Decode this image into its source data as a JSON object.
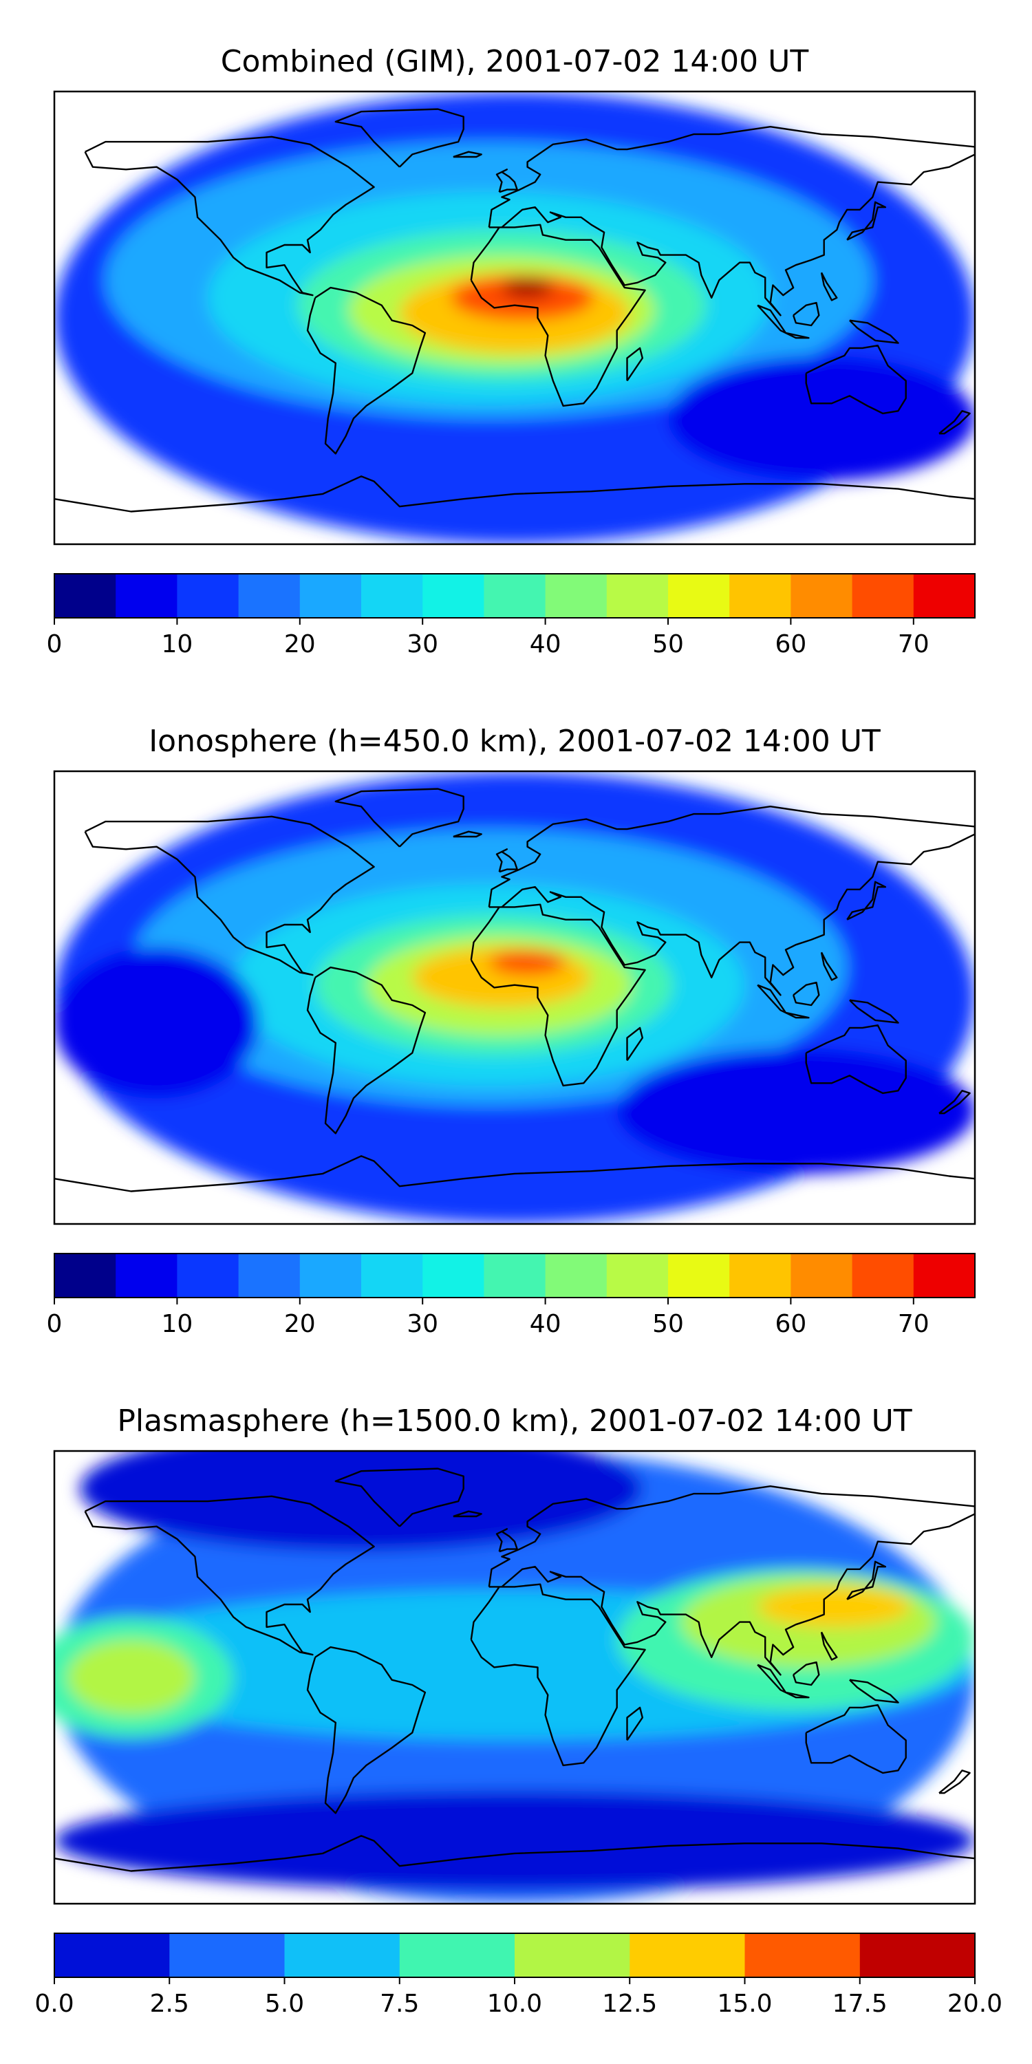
{
  "chart_data": [
    {
      "type": "heatmap",
      "title": "Combined (GIM), 2001-07-02 14:00 UT",
      "colorbar": {
        "levels": [
          0,
          5,
          10,
          15,
          20,
          25,
          30,
          35,
          40,
          45,
          50,
          55,
          60,
          65,
          70,
          75
        ],
        "colors": [
          "#00008b",
          "#0000ee",
          "#0a37ff",
          "#1a73ff",
          "#1aa8ff",
          "#14d6f5",
          "#12f2e6",
          "#44f5b0",
          "#82fa78",
          "#b8fa46",
          "#e8fa14",
          "#ffc400",
          "#ff8c00",
          "#ff4d00",
          "#ee0000",
          "#a00000"
        ],
        "tick_values": [
          0,
          10,
          20,
          30,
          40,
          50,
          60,
          70
        ],
        "tick_labels": [
          "0",
          "10",
          "20",
          "30",
          "40",
          "50",
          "60",
          "70"
        ]
      },
      "features": [
        {
          "name": "background",
          "lon": 0,
          "lat": 0,
          "rx": 180,
          "ry": 90,
          "level": 2
        },
        {
          "name": "mid-band",
          "lon": -10,
          "lat": 15,
          "rx": 150,
          "ry": 55,
          "level": 4
        },
        {
          "name": "inner-band",
          "lon": -10,
          "lat": 8,
          "rx": 110,
          "ry": 42,
          "level": 5
        },
        {
          "name": "crest",
          "lon": -5,
          "lat": 5,
          "rx": 80,
          "ry": 30,
          "level": 7
        },
        {
          "name": "crest-core",
          "lon": -5,
          "lat": 3,
          "rx": 60,
          "ry": 22,
          "level": 9
        },
        {
          "name": "peak-zone",
          "lon": 0,
          "lat": 2,
          "rx": 45,
          "ry": 16,
          "level": 11
        },
        {
          "name": "peak-inner",
          "lon": 3,
          "lat": 8,
          "rx": 28,
          "ry": 9,
          "level": 13
        },
        {
          "name": "peak-max",
          "lon": 5,
          "lat": 12,
          "rx": 10,
          "ry": 4,
          "level": 15
        },
        {
          "name": "south-low",
          "lon": 120,
          "lat": -40,
          "rx": 60,
          "ry": 25,
          "level": 1
        }
      ]
    },
    {
      "type": "heatmap",
      "title": "Ionosphere  (h=450.0 km), 2001-07-02 14:00 UT",
      "colorbar": {
        "levels": [
          0,
          5,
          10,
          15,
          20,
          25,
          30,
          35,
          40,
          45,
          50,
          55,
          60,
          65,
          70,
          75
        ],
        "colors": [
          "#00008b",
          "#0000ee",
          "#0a37ff",
          "#1a73ff",
          "#1aa8ff",
          "#14d6f5",
          "#12f2e6",
          "#44f5b0",
          "#82fa78",
          "#b8fa46",
          "#e8fa14",
          "#ffc400",
          "#ff8c00",
          "#ff4d00",
          "#ee0000",
          "#a00000"
        ],
        "tick_values": [
          0,
          10,
          20,
          30,
          40,
          50,
          60,
          70
        ],
        "tick_labels": [
          "0",
          "10",
          "20",
          "30",
          "40",
          "50",
          "60",
          "70"
        ]
      },
      "features": [
        {
          "name": "background",
          "lon": 0,
          "lat": 0,
          "rx": 180,
          "ry": 90,
          "level": 2
        },
        {
          "name": "mid-band",
          "lon": -10,
          "lat": 12,
          "rx": 140,
          "ry": 55,
          "level": 4
        },
        {
          "name": "inner-band",
          "lon": -10,
          "lat": 5,
          "rx": 100,
          "ry": 40,
          "level": 5
        },
        {
          "name": "crest",
          "lon": -8,
          "lat": 5,
          "rx": 70,
          "ry": 28,
          "level": 7
        },
        {
          "name": "crest-core",
          "lon": -6,
          "lat": 5,
          "rx": 52,
          "ry": 20,
          "level": 9
        },
        {
          "name": "peak-zone",
          "lon": -5,
          "lat": 8,
          "rx": 35,
          "ry": 12,
          "level": 11
        },
        {
          "name": "peak-inner",
          "lon": 5,
          "lat": 14,
          "rx": 15,
          "ry": 5,
          "level": 13
        },
        {
          "name": "pacific-low",
          "lon": -140,
          "lat": -10,
          "rx": 40,
          "ry": 30,
          "level": 1
        },
        {
          "name": "south-low",
          "lon": 110,
          "lat": -45,
          "rx": 70,
          "ry": 25,
          "level": 1
        }
      ]
    },
    {
      "type": "heatmap",
      "title": "Plasmasphere (h=1500.0 km), 2001-07-02 14:00 UT",
      "colorbar": {
        "levels": [
          0,
          2.5,
          5,
          7.5,
          10,
          12.5,
          15,
          17.5,
          20
        ],
        "colors": [
          "#0010d8",
          "#1a6aff",
          "#10c0f8",
          "#40f5b0",
          "#b2f545",
          "#ffcc00",
          "#ff5a00",
          "#c00000"
        ],
        "tick_values": [
          0,
          2.5,
          5,
          7.5,
          10,
          12.5,
          15,
          17.5,
          20
        ],
        "tick_labels": [
          "0.0",
          "2.5",
          "5.0",
          "7.5",
          "10.0",
          "12.5",
          "15.0",
          "17.5",
          "20.0"
        ]
      },
      "features": [
        {
          "name": "background",
          "lon": 0,
          "lat": 0,
          "rx": 180,
          "ry": 90,
          "level": 1
        },
        {
          "name": "north-low",
          "lon": -60,
          "lat": 75,
          "rx": 110,
          "ry": 25,
          "level": 0
        },
        {
          "name": "south-low",
          "lon": 0,
          "lat": -65,
          "rx": 180,
          "ry": 20,
          "level": 0
        },
        {
          "name": "tropical-band",
          "lon": 0,
          "lat": 5,
          "rx": 180,
          "ry": 30,
          "level": 2
        },
        {
          "name": "west-lobe",
          "lon": -150,
          "lat": 0,
          "rx": 40,
          "ry": 24,
          "level": 3
        },
        {
          "name": "west-core",
          "lon": -150,
          "lat": 0,
          "rx": 25,
          "ry": 15,
          "level": 4
        },
        {
          "name": "east-lobe",
          "lon": 110,
          "lat": 15,
          "rx": 70,
          "ry": 28,
          "level": 3
        },
        {
          "name": "east-mid",
          "lon": 115,
          "lat": 22,
          "rx": 50,
          "ry": 18,
          "level": 4
        },
        {
          "name": "east-core",
          "lon": 125,
          "lat": 28,
          "rx": 30,
          "ry": 8,
          "level": 5
        }
      ]
    }
  ]
}
